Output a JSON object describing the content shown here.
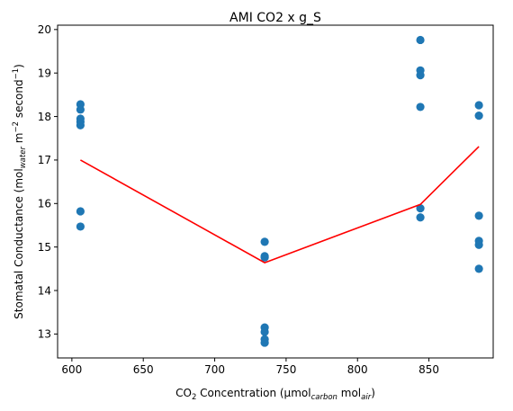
{
  "chart_data": {
    "type": "scatter",
    "title": "AMI CO2 x g_S",
    "xlabel": {
      "parts": [
        {
          "text": "CO",
          "style": "normal"
        },
        {
          "text": "2",
          "style": "sub"
        },
        {
          "text": " Concentration (µmol",
          "style": "normal"
        },
        {
          "text": "carbon",
          "style": "sub-italic"
        },
        {
          "text": " mol",
          "style": "normal"
        },
        {
          "text": "air",
          "style": "sub-italic"
        },
        {
          "text": ")",
          "style": "normal"
        }
      ]
    },
    "ylabel": {
      "parts": [
        {
          "text": "Stomatal Conductance (mol",
          "style": "normal"
        },
        {
          "text": "water",
          "style": "sub-italic"
        },
        {
          "text": " m",
          "style": "normal"
        },
        {
          "text": "−2",
          "style": "sup"
        },
        {
          "text": " second",
          "style": "normal"
        },
        {
          "text": "−1",
          "style": "sup"
        },
        {
          "text": ")",
          "style": "normal"
        }
      ]
    },
    "xlim": [
      590,
      895
    ],
    "ylim": [
      12.45,
      20.1
    ],
    "xticks": [
      600,
      650,
      700,
      750,
      800,
      850
    ],
    "yticks": [
      13,
      14,
      15,
      16,
      17,
      18,
      19,
      20
    ],
    "grid": false,
    "colors": {
      "points": "#1f77b4",
      "line": "#ff0000"
    },
    "points": [
      {
        "x": 606,
        "y": 18.28
      },
      {
        "x": 606,
        "y": 18.16
      },
      {
        "x": 606,
        "y": 17.95
      },
      {
        "x": 606,
        "y": 17.88
      },
      {
        "x": 606,
        "y": 17.8
      },
      {
        "x": 606,
        "y": 15.82
      },
      {
        "x": 606,
        "y": 15.47
      },
      {
        "x": 735,
        "y": 15.12
      },
      {
        "x": 735,
        "y": 14.79
      },
      {
        "x": 735,
        "y": 14.76
      },
      {
        "x": 735,
        "y": 13.15
      },
      {
        "x": 735,
        "y": 13.05
      },
      {
        "x": 735,
        "y": 12.88
      },
      {
        "x": 735,
        "y": 12.8
      },
      {
        "x": 844,
        "y": 19.76
      },
      {
        "x": 844,
        "y": 19.06
      },
      {
        "x": 844,
        "y": 18.95
      },
      {
        "x": 844,
        "y": 18.22
      },
      {
        "x": 844,
        "y": 15.89
      },
      {
        "x": 844,
        "y": 15.68
      },
      {
        "x": 885,
        "y": 18.26
      },
      {
        "x": 885,
        "y": 18.02
      },
      {
        "x": 885,
        "y": 15.72
      },
      {
        "x": 885,
        "y": 15.14
      },
      {
        "x": 885,
        "y": 15.05
      },
      {
        "x": 885,
        "y": 14.5
      }
    ],
    "line": {
      "x": [
        606,
        735,
        844,
        885
      ],
      "y": [
        17.0,
        14.64,
        15.98,
        17.31
      ]
    }
  }
}
